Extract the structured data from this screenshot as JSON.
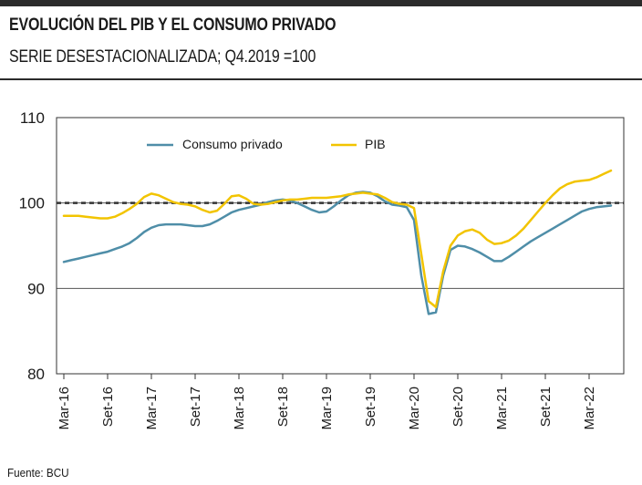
{
  "header": {
    "title": "EVOLUCIÓN DEL PIB Y EL CONSUMO PRIVADO",
    "subtitle": "SERIE DESESTACIONALIZADA; Q4.2019 =100"
  },
  "footer": {
    "source": "Fuente: BCU"
  },
  "colors": {
    "consumo": "#4f8ea8",
    "pib": "#f2c400",
    "reference": "#333333",
    "grid": "#555555"
  },
  "chart_data": {
    "type": "line",
    "title": "EVOLUCIÓN DEL PIB Y EL CONSUMO PRIVADO",
    "subtitle": "SERIE DESESTACIONALIZADA; Q4.2019 =100",
    "xlabel": "",
    "ylabel": "",
    "ylim": [
      80,
      110
    ],
    "yticks": [
      80,
      90,
      100,
      110
    ],
    "reference_line": 100,
    "grid": true,
    "legend_position": "top-left",
    "x_tick_labels": [
      "Mar-16",
      "Set-16",
      "Mar-17",
      "Set-17",
      "Mar-18",
      "Set-18",
      "Mar-19",
      "Set-19",
      "Mar-20",
      "Set-20",
      "Mar-21",
      "Set-21",
      "Mar-22"
    ],
    "x": [
      "Mar-16",
      "Abr-16",
      "May-16",
      "Jun-16",
      "Jul-16",
      "Ago-16",
      "Set-16",
      "Oct-16",
      "Nov-16",
      "Dic-16",
      "Ene-17",
      "Feb-17",
      "Mar-17",
      "Abr-17",
      "May-17",
      "Jun-17",
      "Jul-17",
      "Ago-17",
      "Set-17",
      "Oct-17",
      "Nov-17",
      "Dic-17",
      "Ene-18",
      "Feb-18",
      "Mar-18",
      "Abr-18",
      "May-18",
      "Jun-18",
      "Jul-18",
      "Ago-18",
      "Set-18",
      "Oct-18",
      "Nov-18",
      "Dic-18",
      "Ene-19",
      "Feb-19",
      "Mar-19",
      "Abr-19",
      "May-19",
      "Jun-19",
      "Jul-19",
      "Ago-19",
      "Set-19",
      "Oct-19",
      "Nov-19",
      "Dic-19",
      "Ene-20",
      "Feb-20",
      "Mar-20",
      "Abr-20",
      "May-20",
      "Jun-20",
      "Jul-20",
      "Ago-20",
      "Set-20",
      "Oct-20",
      "Nov-20",
      "Dic-20",
      "Ene-21",
      "Feb-21",
      "Mar-21",
      "Abr-21",
      "May-21",
      "Jun-21",
      "Jul-21",
      "Ago-21",
      "Set-21",
      "Oct-21",
      "Nov-21",
      "Dic-21",
      "Ene-22",
      "Feb-22",
      "Mar-22",
      "Abr-22",
      "May-22",
      "Jun-22"
    ],
    "series": [
      {
        "name": "Consumo privado",
        "color": "#4f8ea8",
        "values": [
          93.1,
          93.3,
          93.5,
          93.7,
          93.9,
          94.1,
          94.3,
          94.6,
          94.9,
          95.3,
          95.9,
          96.6,
          97.1,
          97.4,
          97.5,
          97.5,
          97.5,
          97.4,
          97.3,
          97.3,
          97.5,
          97.9,
          98.4,
          98.9,
          99.2,
          99.4,
          99.6,
          99.8,
          100.1,
          100.3,
          100.4,
          100.3,
          100.0,
          99.6,
          99.2,
          98.9,
          99.0,
          99.6,
          100.3,
          100.9,
          101.2,
          101.3,
          101.2,
          100.8,
          100.2,
          99.8,
          99.7,
          99.5,
          98.0,
          91.5,
          87.0,
          87.2,
          91.5,
          94.5,
          95.0,
          94.9,
          94.6,
          94.2,
          93.7,
          93.2,
          93.2,
          93.7,
          94.3,
          94.9,
          95.5,
          96.0,
          96.5,
          97.0,
          97.5,
          98.0,
          98.5,
          99.0,
          99.3,
          99.5,
          99.6,
          99.7
        ]
      },
      {
        "name": "PIB",
        "color": "#f2c400",
        "values": [
          98.5,
          98.5,
          98.5,
          98.4,
          98.3,
          98.2,
          98.2,
          98.4,
          98.8,
          99.3,
          99.9,
          100.7,
          101.1,
          100.9,
          100.5,
          100.1,
          99.9,
          99.8,
          99.6,
          99.2,
          98.9,
          99.1,
          99.9,
          100.8,
          100.9,
          100.5,
          99.9,
          99.8,
          99.9,
          100.1,
          100.3,
          100.4,
          100.4,
          100.5,
          100.6,
          100.6,
          100.6,
          100.7,
          100.8,
          101.0,
          101.1,
          101.2,
          101.1,
          101.0,
          100.6,
          100.1,
          99.9,
          99.8,
          99.4,
          94.0,
          88.5,
          87.8,
          92.0,
          95.0,
          96.2,
          96.7,
          96.9,
          96.5,
          95.7,
          95.2,
          95.3,
          95.6,
          96.2,
          97.0,
          98.0,
          99.0,
          100.0,
          100.9,
          101.7,
          102.2,
          102.5,
          102.6,
          102.7,
          103.0,
          103.4,
          103.8
        ]
      }
    ]
  }
}
